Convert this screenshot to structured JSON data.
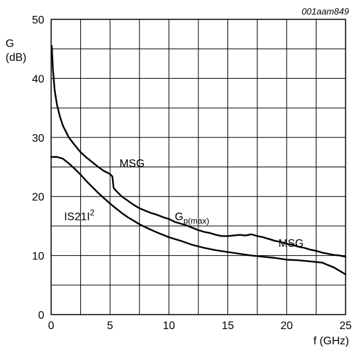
{
  "figure_id": "001aam849",
  "chart_data": {
    "type": "line",
    "ylabel": "G",
    "ylabel_unit": "(dB)",
    "xlabel": "f (GHz)",
    "xlim": [
      0,
      25
    ],
    "ylim": [
      0,
      50
    ],
    "x_ticks": [
      0,
      5,
      10,
      15,
      20,
      25
    ],
    "y_ticks": [
      0,
      10,
      20,
      30,
      40,
      50
    ],
    "x_grid_step": 2.5,
    "y_grid_step": 5,
    "grid": true,
    "legend": "none",
    "series": [
      {
        "x": [
          0.05,
          0.15,
          0.3,
          0.5,
          0.75,
          1,
          1.25,
          1.5,
          2,
          2.5,
          3,
          3.5,
          4,
          4.5,
          5,
          5.2,
          5.3,
          5.5,
          6,
          6.5,
          7,
          7.5,
          8,
          8.5,
          9,
          9.5,
          10,
          10.5,
          11,
          11.5,
          12,
          12.5,
          13,
          13.5,
          14,
          14.5,
          15,
          15.5,
          16,
          16.5,
          17,
          17.5,
          18,
          18.5,
          19,
          19.5,
          20,
          20.5,
          21,
          21.5,
          22,
          22.5,
          23,
          23.5,
          24,
          24.5,
          25
        ],
        "y": [
          45.5,
          41.5,
          38.0,
          35.5,
          33.5,
          32.0,
          31.0,
          30.0,
          28.7,
          27.5,
          26.6,
          25.8,
          25.0,
          24.3,
          23.8,
          23.4,
          21.5,
          21.0,
          20.0,
          19.3,
          18.6,
          18.0,
          17.6,
          17.2,
          16.9,
          16.5,
          16.2,
          15.7,
          15.4,
          15.1,
          14.7,
          14.3,
          14.0,
          13.8,
          13.5,
          13.3,
          13.3,
          13.4,
          13.5,
          13.4,
          13.6,
          13.3,
          13.1,
          12.8,
          12.5,
          12.3,
          12.0,
          11.8,
          11.5,
          11.3,
          11.0,
          10.8,
          10.5,
          10.3,
          10.1,
          10.0,
          9.8
        ]
      },
      {
        "x": [
          0,
          0.5,
          1,
          1.5,
          2,
          2.5,
          3,
          3.5,
          4,
          4.5,
          5,
          5.5,
          6,
          6.5,
          7,
          7.5,
          8,
          9,
          10,
          11,
          12,
          13,
          14,
          15,
          16,
          17,
          18,
          19,
          20,
          21,
          22,
          23,
          24,
          25
        ],
        "y": [
          26.7,
          26.7,
          26.4,
          25.6,
          24.7,
          23.7,
          22.6,
          21.6,
          20.6,
          19.7,
          18.8,
          18.0,
          17.2,
          16.5,
          15.9,
          15.3,
          14.8,
          13.9,
          13.1,
          12.5,
          11.8,
          11.3,
          10.9,
          10.6,
          10.3,
          10.0,
          9.8,
          9.6,
          9.3,
          9.2,
          9.0,
          8.8,
          8.0,
          6.8
        ]
      }
    ],
    "annotations": [
      {
        "text": "MSG",
        "x": 5.8,
        "y": 25.0
      },
      {
        "base": "G",
        "sub": "p(max)",
        "x": 10.5,
        "y": 16.0
      },
      {
        "text": "IS21I",
        "sup": "2",
        "x": 1.1,
        "y": 16.0
      },
      {
        "text": "MSG",
        "x": 19.3,
        "y": 11.5
      }
    ]
  }
}
